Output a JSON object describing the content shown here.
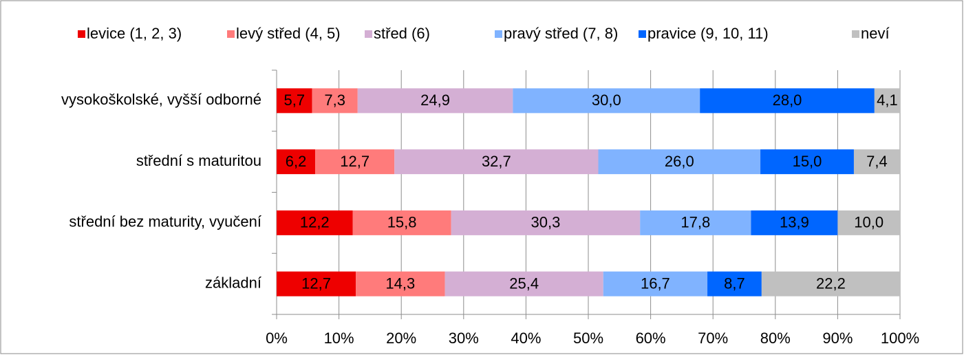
{
  "chart_data": {
    "type": "stacked-bar-horizontal",
    "categories": [
      "vysokoškolské, vyšší odborné",
      "střední s maturitou",
      "střední bez maturity, vyučení",
      "základní"
    ],
    "series": [
      {
        "name": "levice (1, 2, 3)",
        "color": "#ee0000",
        "values": [
          5.7,
          6.2,
          12.2,
          12.7
        ],
        "value_labels": [
          "5,7",
          "6,2",
          "12,2",
          "12,7"
        ]
      },
      {
        "name": "levý střed (4, 5)",
        "color": "#ff7b7b",
        "values": [
          7.3,
          12.7,
          15.8,
          14.3
        ],
        "value_labels": [
          "7,3",
          "12,7",
          "15,8",
          "14,3"
        ]
      },
      {
        "name": "střed (6)",
        "color": "#d4afd4",
        "values": [
          24.9,
          32.7,
          30.3,
          25.4
        ],
        "value_labels": [
          "24,9",
          "32,7",
          "30,3",
          "25,4"
        ]
      },
      {
        "name": "pravý střed (7, 8)",
        "color": "#80b3ff",
        "values": [
          30.0,
          26.0,
          17.8,
          16.7
        ],
        "value_labels": [
          "30,0",
          "26,0",
          "17,8",
          "16,7"
        ]
      },
      {
        "name": "pravice (9, 10, 11)",
        "color": "#0066ff",
        "values": [
          28.0,
          15.0,
          13.9,
          8.7
        ],
        "value_labels": [
          "28,0",
          "15,0",
          "13,9",
          "8,7"
        ]
      },
      {
        "name": "neví",
        "color": "#c0c0c0",
        "values": [
          4.1,
          7.4,
          10.0,
          22.2
        ],
        "value_labels": [
          "4,1",
          "7,4",
          "10,0",
          "22,2"
        ]
      }
    ],
    "xlim": [
      0,
      100
    ],
    "xticks": [
      {
        "value": 0,
        "label": "0%"
      },
      {
        "value": 10,
        "label": "10%"
      },
      {
        "value": 20,
        "label": "20%"
      },
      {
        "value": 30,
        "label": "30%"
      },
      {
        "value": 40,
        "label": "40%"
      },
      {
        "value": 50,
        "label": "50%"
      },
      {
        "value": 60,
        "label": "60%"
      },
      {
        "value": 70,
        "label": "70%"
      },
      {
        "value": 80,
        "label": "80%"
      },
      {
        "value": 90,
        "label": "90%"
      },
      {
        "value": 100,
        "label": "100%"
      }
    ],
    "grid": true,
    "legend": "top"
  }
}
